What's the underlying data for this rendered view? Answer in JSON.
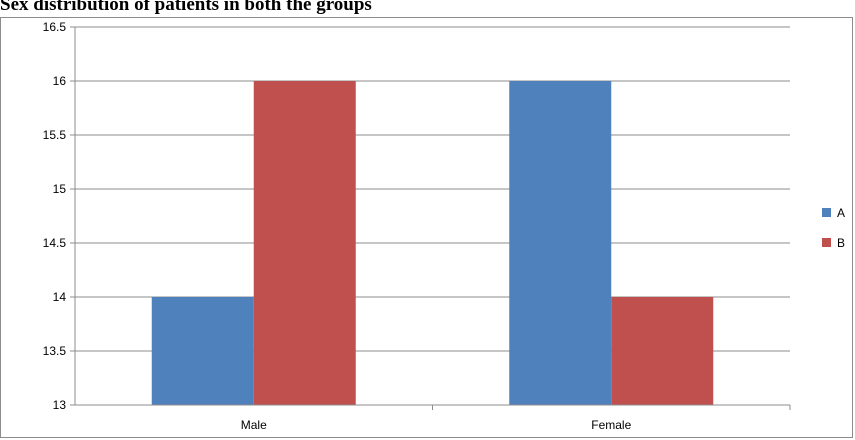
{
  "title": "Sex distribution of patients in both the groups",
  "chart_data": {
    "type": "bar",
    "title": "Sex distribution of patients in both the groups",
    "categories": [
      "Male",
      "Female"
    ],
    "series": [
      {
        "name": "A",
        "values": [
          14,
          16
        ],
        "color": "#4F81BD"
      },
      {
        "name": "B",
        "values": [
          16,
          14
        ],
        "color": "#C0504D"
      }
    ],
    "xlabel": "",
    "ylabel": "",
    "ylim": [
      13,
      16.5
    ],
    "yticks": [
      "13",
      "13.5",
      "14",
      "14.5",
      "15",
      "15.5",
      "16",
      "16.5"
    ],
    "grid": true,
    "legend": "right"
  }
}
